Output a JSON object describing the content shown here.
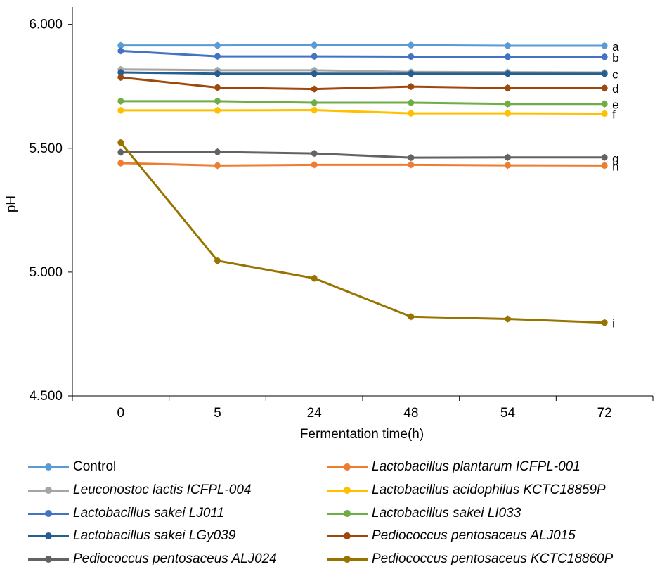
{
  "chart_data": {
    "type": "line",
    "xlabel": "Fermentation time(h)",
    "ylabel": "pH",
    "categories": [
      "0",
      "5",
      "24",
      "48",
      "54",
      "72"
    ],
    "ylim": [
      4.5,
      6.0
    ],
    "yticks": [
      "4.500",
      "5.000",
      "5.500",
      "6.000"
    ],
    "ytick_values": [
      4.5,
      5.0,
      5.5,
      6.0
    ],
    "grid": false,
    "legend_position": "bottom",
    "series": [
      {
        "name": "Control",
        "italic": false,
        "color": "#5B9BD5",
        "letter": "a",
        "values": [
          5.915,
          5.915,
          5.916,
          5.916,
          5.914,
          5.914
        ]
      },
      {
        "name": "Lactobacillus plantarum ICFPL-001",
        "italic": true,
        "color": "#ED7D31",
        "letter": "h",
        "values": [
          5.44,
          5.43,
          5.433,
          5.433,
          5.431,
          5.43
        ]
      },
      {
        "name": "Leuconostoc lactis ICFPL-004",
        "italic": true,
        "color": "#A5A5A5",
        "letter": "",
        "values": [
          5.818,
          5.815,
          5.815,
          5.808,
          5.807,
          5.806
        ]
      },
      {
        "name": "Lactobacillus acidophilus KCTC18859P",
        "italic": true,
        "color": "#FFC000",
        "letter": "f",
        "values": [
          5.653,
          5.653,
          5.654,
          5.641,
          5.641,
          5.64
        ]
      },
      {
        "name": "Lactobacillus sakei LJ011",
        "italic": true,
        "color": "#4472C4",
        "letter": "b",
        "values": [
          5.893,
          5.871,
          5.871,
          5.87,
          5.869,
          5.869
        ]
      },
      {
        "name": "Lactobacillus sakei LI033",
        "italic": true,
        "color": "#70AD47",
        "letter": "e",
        "values": [
          5.69,
          5.69,
          5.684,
          5.684,
          5.679,
          5.679
        ]
      },
      {
        "name": "Lactobacillus sakei LGy039",
        "italic": true,
        "color": "#255E91",
        "letter": "c",
        "values": [
          5.806,
          5.801,
          5.801,
          5.801,
          5.801,
          5.801
        ]
      },
      {
        "name": "Pediococcus pentosaceus ALJ015",
        "italic": true,
        "color": "#9E480E",
        "letter": "d",
        "values": [
          5.786,
          5.745,
          5.739,
          5.749,
          5.743,
          5.743
        ]
      },
      {
        "name": "Pediococcus pentosaceus ALJ024",
        "italic": true,
        "color": "#636363",
        "letter": "g",
        "values": [
          5.484,
          5.485,
          5.479,
          5.462,
          5.463,
          5.463
        ]
      },
      {
        "name": "Pediococcus pentosaceus KCTC18860P",
        "italic": true,
        "color": "#997300",
        "letter": "i",
        "values": [
          5.523,
          5.046,
          4.975,
          4.82,
          4.811,
          4.796
        ]
      }
    ],
    "group_letters": [
      "a",
      "b",
      "c",
      "d",
      "e",
      "f",
      "g",
      "h",
      "i"
    ]
  }
}
